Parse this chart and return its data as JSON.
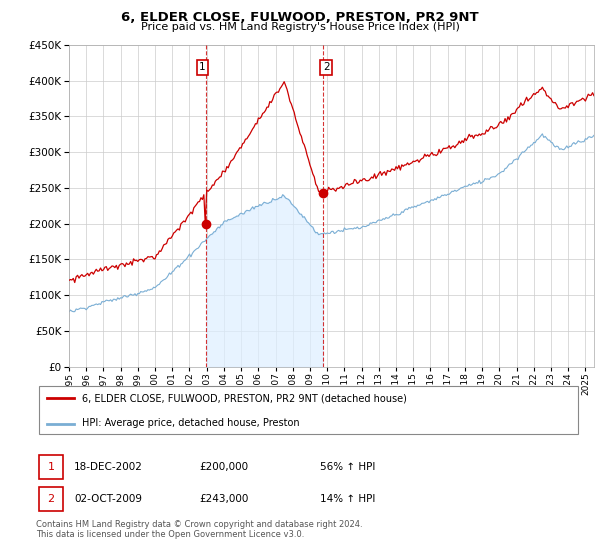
{
  "title": "6, ELDER CLOSE, FULWOOD, PRESTON, PR2 9NT",
  "subtitle": "Price paid vs. HM Land Registry's House Price Index (HPI)",
  "property_label": "6, ELDER CLOSE, FULWOOD, PRESTON, PR2 9NT (detached house)",
  "hpi_label": "HPI: Average price, detached house, Preston",
  "transaction1_date": "18-DEC-2002",
  "transaction1_price": "£200,000",
  "transaction1_hpi": "56% ↑ HPI",
  "transaction2_date": "02-OCT-2009",
  "transaction2_price": "£243,000",
  "transaction2_hpi": "14% ↑ HPI",
  "footer": "Contains HM Land Registry data © Crown copyright and database right 2024.\nThis data is licensed under the Open Government Licence v3.0.",
  "ylim": [
    0,
    450000
  ],
  "yticks": [
    0,
    50000,
    100000,
    150000,
    200000,
    250000,
    300000,
    350000,
    400000,
    450000
  ],
  "property_color": "#cc0000",
  "hpi_color": "#7aaed4",
  "hpi_fill_color": "#ddeeff",
  "vline_color": "#cc0000",
  "bg_color": "#ffffff"
}
